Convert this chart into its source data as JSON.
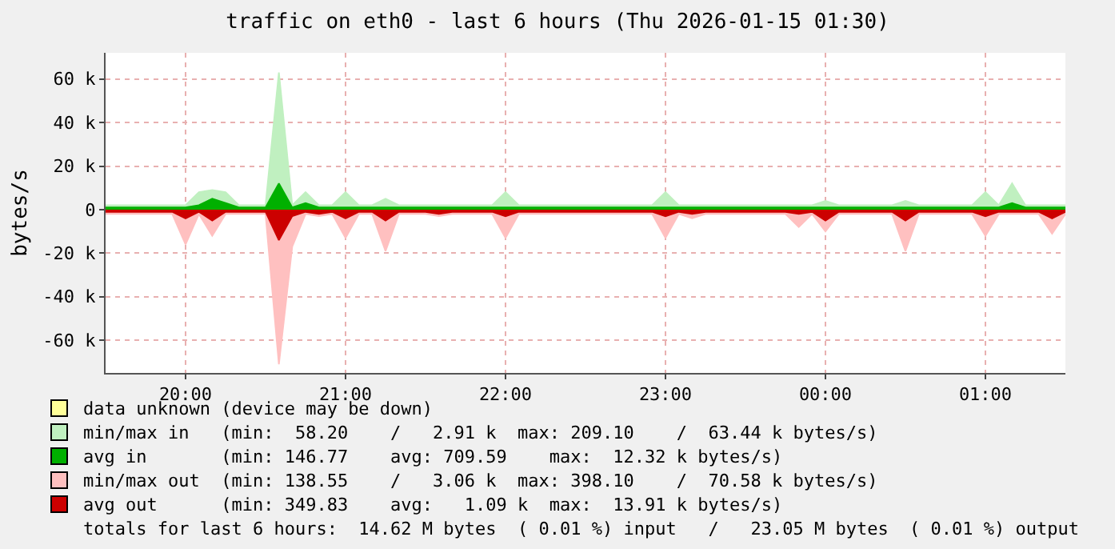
{
  "chart_data": {
    "type": "area",
    "title": "traffic on eth0 - last 6 hours (Thu 2026-01-15 01:30)",
    "ylabel": "bytes/s",
    "x": [
      "2026-01-14T19:30",
      "2026-01-14T19:35",
      "2026-01-14T19:40",
      "2026-01-14T19:45",
      "2026-01-14T19:50",
      "2026-01-14T19:55",
      "2026-01-14T20:00",
      "2026-01-14T20:05",
      "2026-01-14T20:10",
      "2026-01-14T20:15",
      "2026-01-14T20:20",
      "2026-01-14T20:25",
      "2026-01-14T20:30",
      "2026-01-14T20:35",
      "2026-01-14T20:40",
      "2026-01-14T20:45",
      "2026-01-14T20:50",
      "2026-01-14T20:55",
      "2026-01-14T21:00",
      "2026-01-14T21:05",
      "2026-01-14T21:10",
      "2026-01-14T21:15",
      "2026-01-14T21:20",
      "2026-01-14T21:25",
      "2026-01-14T21:30",
      "2026-01-14T21:35",
      "2026-01-14T21:40",
      "2026-01-14T21:45",
      "2026-01-14T21:50",
      "2026-01-14T21:55",
      "2026-01-14T22:00",
      "2026-01-14T22:05",
      "2026-01-14T22:10",
      "2026-01-14T22:15",
      "2026-01-14T22:20",
      "2026-01-14T22:25",
      "2026-01-14T22:30",
      "2026-01-14T22:35",
      "2026-01-14T22:40",
      "2026-01-14T22:45",
      "2026-01-14T22:50",
      "2026-01-14T22:55",
      "2026-01-14T23:00",
      "2026-01-14T23:05",
      "2026-01-14T23:10",
      "2026-01-14T23:15",
      "2026-01-14T23:20",
      "2026-01-14T23:25",
      "2026-01-14T23:30",
      "2026-01-14T23:35",
      "2026-01-14T23:40",
      "2026-01-14T23:45",
      "2026-01-14T23:50",
      "2026-01-14T23:55",
      "2026-01-15T00:00",
      "2026-01-15T00:05",
      "2026-01-15T00:10",
      "2026-01-15T00:15",
      "2026-01-15T00:20",
      "2026-01-15T00:25",
      "2026-01-15T00:30",
      "2026-01-15T00:35",
      "2026-01-15T00:40",
      "2026-01-15T00:45",
      "2026-01-15T00:50",
      "2026-01-15T00:55",
      "2026-01-15T01:00",
      "2026-01-15T01:05",
      "2026-01-15T01:10",
      "2026-01-15T01:15",
      "2026-01-15T01:20",
      "2026-01-15T01:25",
      "2026-01-15T01:30"
    ],
    "series": [
      {
        "name": "data unknown (device may be down)",
        "color": "#ffff99",
        "values": [
          null,
          null,
          null,
          null,
          null,
          null,
          null,
          null,
          null,
          null,
          null,
          null,
          null,
          null,
          null,
          null,
          null,
          null,
          null,
          null,
          null,
          null,
          null,
          null,
          null,
          null,
          null,
          null,
          null,
          null,
          null,
          null,
          null,
          null,
          null,
          null,
          null,
          null,
          null,
          null,
          null,
          null,
          null,
          null,
          null,
          null,
          null,
          null,
          null,
          null,
          null,
          null,
          null,
          null,
          null,
          null,
          null,
          null,
          null,
          null,
          null,
          null,
          null,
          null,
          null,
          null,
          null,
          null,
          null,
          null,
          null,
          null,
          null
        ]
      },
      {
        "name": "min/max in   (min:  58.20    /   2.91 k  max: 209.10    /  63.44 k bytes/s)",
        "color": "#c0f0c0",
        "values": [
          2000,
          2000,
          2000,
          2000,
          2000,
          2000,
          2000,
          8000,
          9000,
          8000,
          2000,
          2000,
          2000,
          63000,
          2000,
          8000,
          2000,
          2000,
          8000,
          2000,
          2000,
          5000,
          2000,
          2000,
          2000,
          2000,
          2000,
          2000,
          2000,
          2000,
          8000,
          2000,
          2000,
          2000,
          2000,
          2000,
          2000,
          2000,
          2000,
          2000,
          2000,
          2000,
          8000,
          2000,
          2000,
          2000,
          2000,
          2000,
          2000,
          2000,
          2000,
          2000,
          2000,
          2000,
          4000,
          2000,
          2000,
          2000,
          2000,
          2000,
          4000,
          2000,
          2000,
          2000,
          2000,
          2000,
          8000,
          2000,
          12000,
          2000,
          2000,
          2000,
          2000
        ]
      },
      {
        "name": "avg in       (min: 146.77    avg: 709.59    max:  12.32 k bytes/s)",
        "color": "#00b000",
        "values": [
          1000,
          1000,
          1000,
          1000,
          1000,
          1000,
          1000,
          2000,
          5000,
          3000,
          1000,
          1000,
          1000,
          12000,
          1000,
          3000,
          1000,
          1000,
          1000,
          1000,
          1000,
          1000,
          1000,
          1000,
          1000,
          1000,
          1000,
          1000,
          1000,
          1000,
          1000,
          1000,
          1000,
          1000,
          1000,
          1000,
          1000,
          1000,
          1000,
          1000,
          1000,
          1000,
          1000,
          1000,
          1000,
          1000,
          1000,
          1000,
          1000,
          1000,
          1000,
          1000,
          1000,
          1000,
          1000,
          1000,
          1000,
          1000,
          1000,
          1000,
          1000,
          1000,
          1000,
          1000,
          1000,
          1000,
          1000,
          1000,
          3000,
          1000,
          1000,
          1000,
          1000
        ]
      },
      {
        "name": "min/max out  (min: 138.55    /   3.06 k  max: 398.10    /  70.58 k bytes/s)",
        "color": "#ffc0c0",
        "values": [
          -2000,
          -2000,
          -2000,
          -2000,
          -2000,
          -2000,
          -16000,
          -2000,
          -12000,
          -2000,
          -2000,
          -2000,
          -2000,
          -71000,
          -17000,
          -2000,
          -3000,
          -2000,
          -13000,
          -2000,
          -2000,
          -19000,
          -2000,
          -2000,
          -2000,
          -3000,
          -2000,
          -2000,
          -2000,
          -2000,
          -13000,
          -2000,
          -2000,
          -2000,
          -2000,
          -2000,
          -2000,
          -2000,
          -2000,
          -2000,
          -2000,
          -2000,
          -13000,
          -2000,
          -4000,
          -2000,
          -2000,
          -2000,
          -2000,
          -2000,
          -2000,
          -2000,
          -8000,
          -2000,
          -10000,
          -2000,
          -2000,
          -2000,
          -2000,
          -2000,
          -19000,
          -2000,
          -2000,
          -2000,
          -2000,
          -2000,
          -12000,
          -2000,
          -2000,
          -2000,
          -2000,
          -11000,
          -2000
        ]
      },
      {
        "name": "avg out      (min: 349.83    avg:   1.09 k  max:  13.91 k bytes/s)",
        "color": "#cc0000",
        "values": [
          -1000,
          -1000,
          -1000,
          -1000,
          -1000,
          -1000,
          -4000,
          -1000,
          -5000,
          -1000,
          -1000,
          -1000,
          -1000,
          -14000,
          -3000,
          -1000,
          -2000,
          -1000,
          -4000,
          -1000,
          -1000,
          -5000,
          -1000,
          -1000,
          -1000,
          -2000,
          -1000,
          -1000,
          -1000,
          -1000,
          -3000,
          -1000,
          -1000,
          -1000,
          -1000,
          -1000,
          -1000,
          -1000,
          -1000,
          -1000,
          -1000,
          -1000,
          -3000,
          -1000,
          -2000,
          -1000,
          -1000,
          -1000,
          -1000,
          -1000,
          -1000,
          -1000,
          -2000,
          -1000,
          -5000,
          -1000,
          -1000,
          -1000,
          -1000,
          -1000,
          -5000,
          -1000,
          -1000,
          -1000,
          -1000,
          -1000,
          -3000,
          -1000,
          -1000,
          -1000,
          -1000,
          -4000,
          -1000
        ]
      }
    ],
    "xlim": [
      "2026-01-14T19:30",
      "2026-01-15T01:30"
    ],
    "xticks": [
      {
        "value": "2026-01-14T20:00",
        "label": "20:00"
      },
      {
        "value": "2026-01-14T21:00",
        "label": "21:00"
      },
      {
        "value": "2026-01-14T22:00",
        "label": "22:00"
      },
      {
        "value": "2026-01-14T23:00",
        "label": "23:00"
      },
      {
        "value": "2026-01-15T00:00",
        "label": "00:00"
      },
      {
        "value": "2026-01-15T01:00",
        "label": "01:00"
      }
    ],
    "ylim": [
      -75000,
      72000
    ],
    "yticks": [
      {
        "value": -60000,
        "label": "-60 k"
      },
      {
        "value": -40000,
        "label": "-40 k"
      },
      {
        "value": -20000,
        "label": "-20 k"
      },
      0,
      {
        "value": 20000,
        "label": "20 k"
      },
      {
        "value": 40000,
        "label": "40 k"
      },
      {
        "value": 60000,
        "label": "60 k"
      }
    ],
    "grid": true,
    "legend": "bottom",
    "annotations": [
      "totals for last 6 hours:  14.62 M bytes  ( 0.01 %) input   /   23.05 M bytes  ( 0.01 %) output"
    ]
  }
}
